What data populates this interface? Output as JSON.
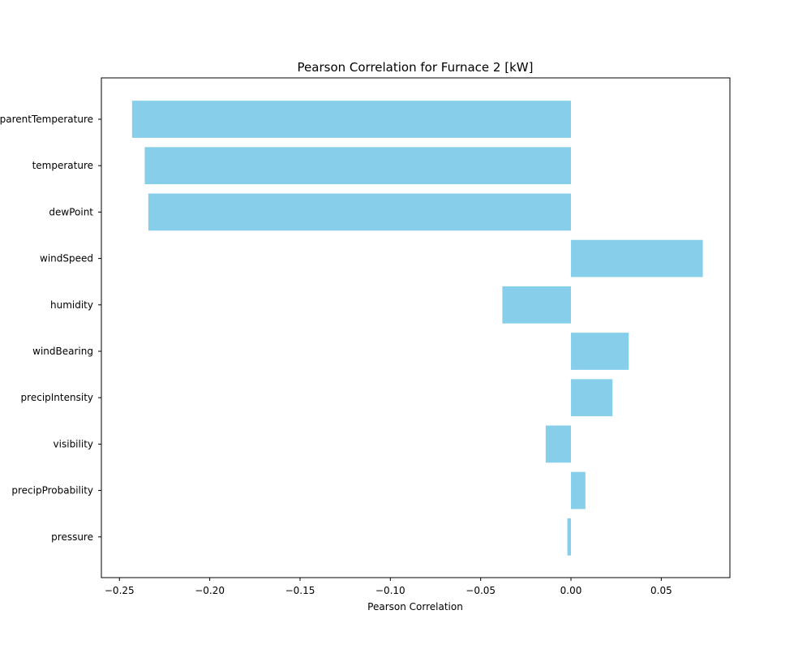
{
  "chart_data": {
    "type": "bar",
    "orientation": "horizontal",
    "title": "Pearson Correlation for Furnace 2 [kW]",
    "xlabel": "Pearson Correlation",
    "ylabel": "",
    "xlim": [
      -0.26,
      0.088
    ],
    "x_ticks": [
      -0.25,
      -0.2,
      -0.15,
      -0.1,
      -0.05,
      0.0,
      0.05
    ],
    "x_tick_labels": [
      "−0.25",
      "−0.20",
      "−0.15",
      "−0.10",
      "−0.05",
      "0.00",
      "0.05"
    ],
    "categories": [
      "apparentTemperature",
      "temperature",
      "dewPoint",
      "windSpeed",
      "humidity",
      "windBearing",
      "precipIntensity",
      "visibility",
      "precipProbability",
      "pressure"
    ],
    "values": [
      -0.243,
      -0.236,
      -0.234,
      0.073,
      -0.038,
      0.032,
      0.023,
      -0.014,
      0.008,
      -0.002
    ],
    "grid": false,
    "colors": {
      "bar": "#87ceeb",
      "axis": "#000000",
      "background": "#ffffff"
    }
  }
}
